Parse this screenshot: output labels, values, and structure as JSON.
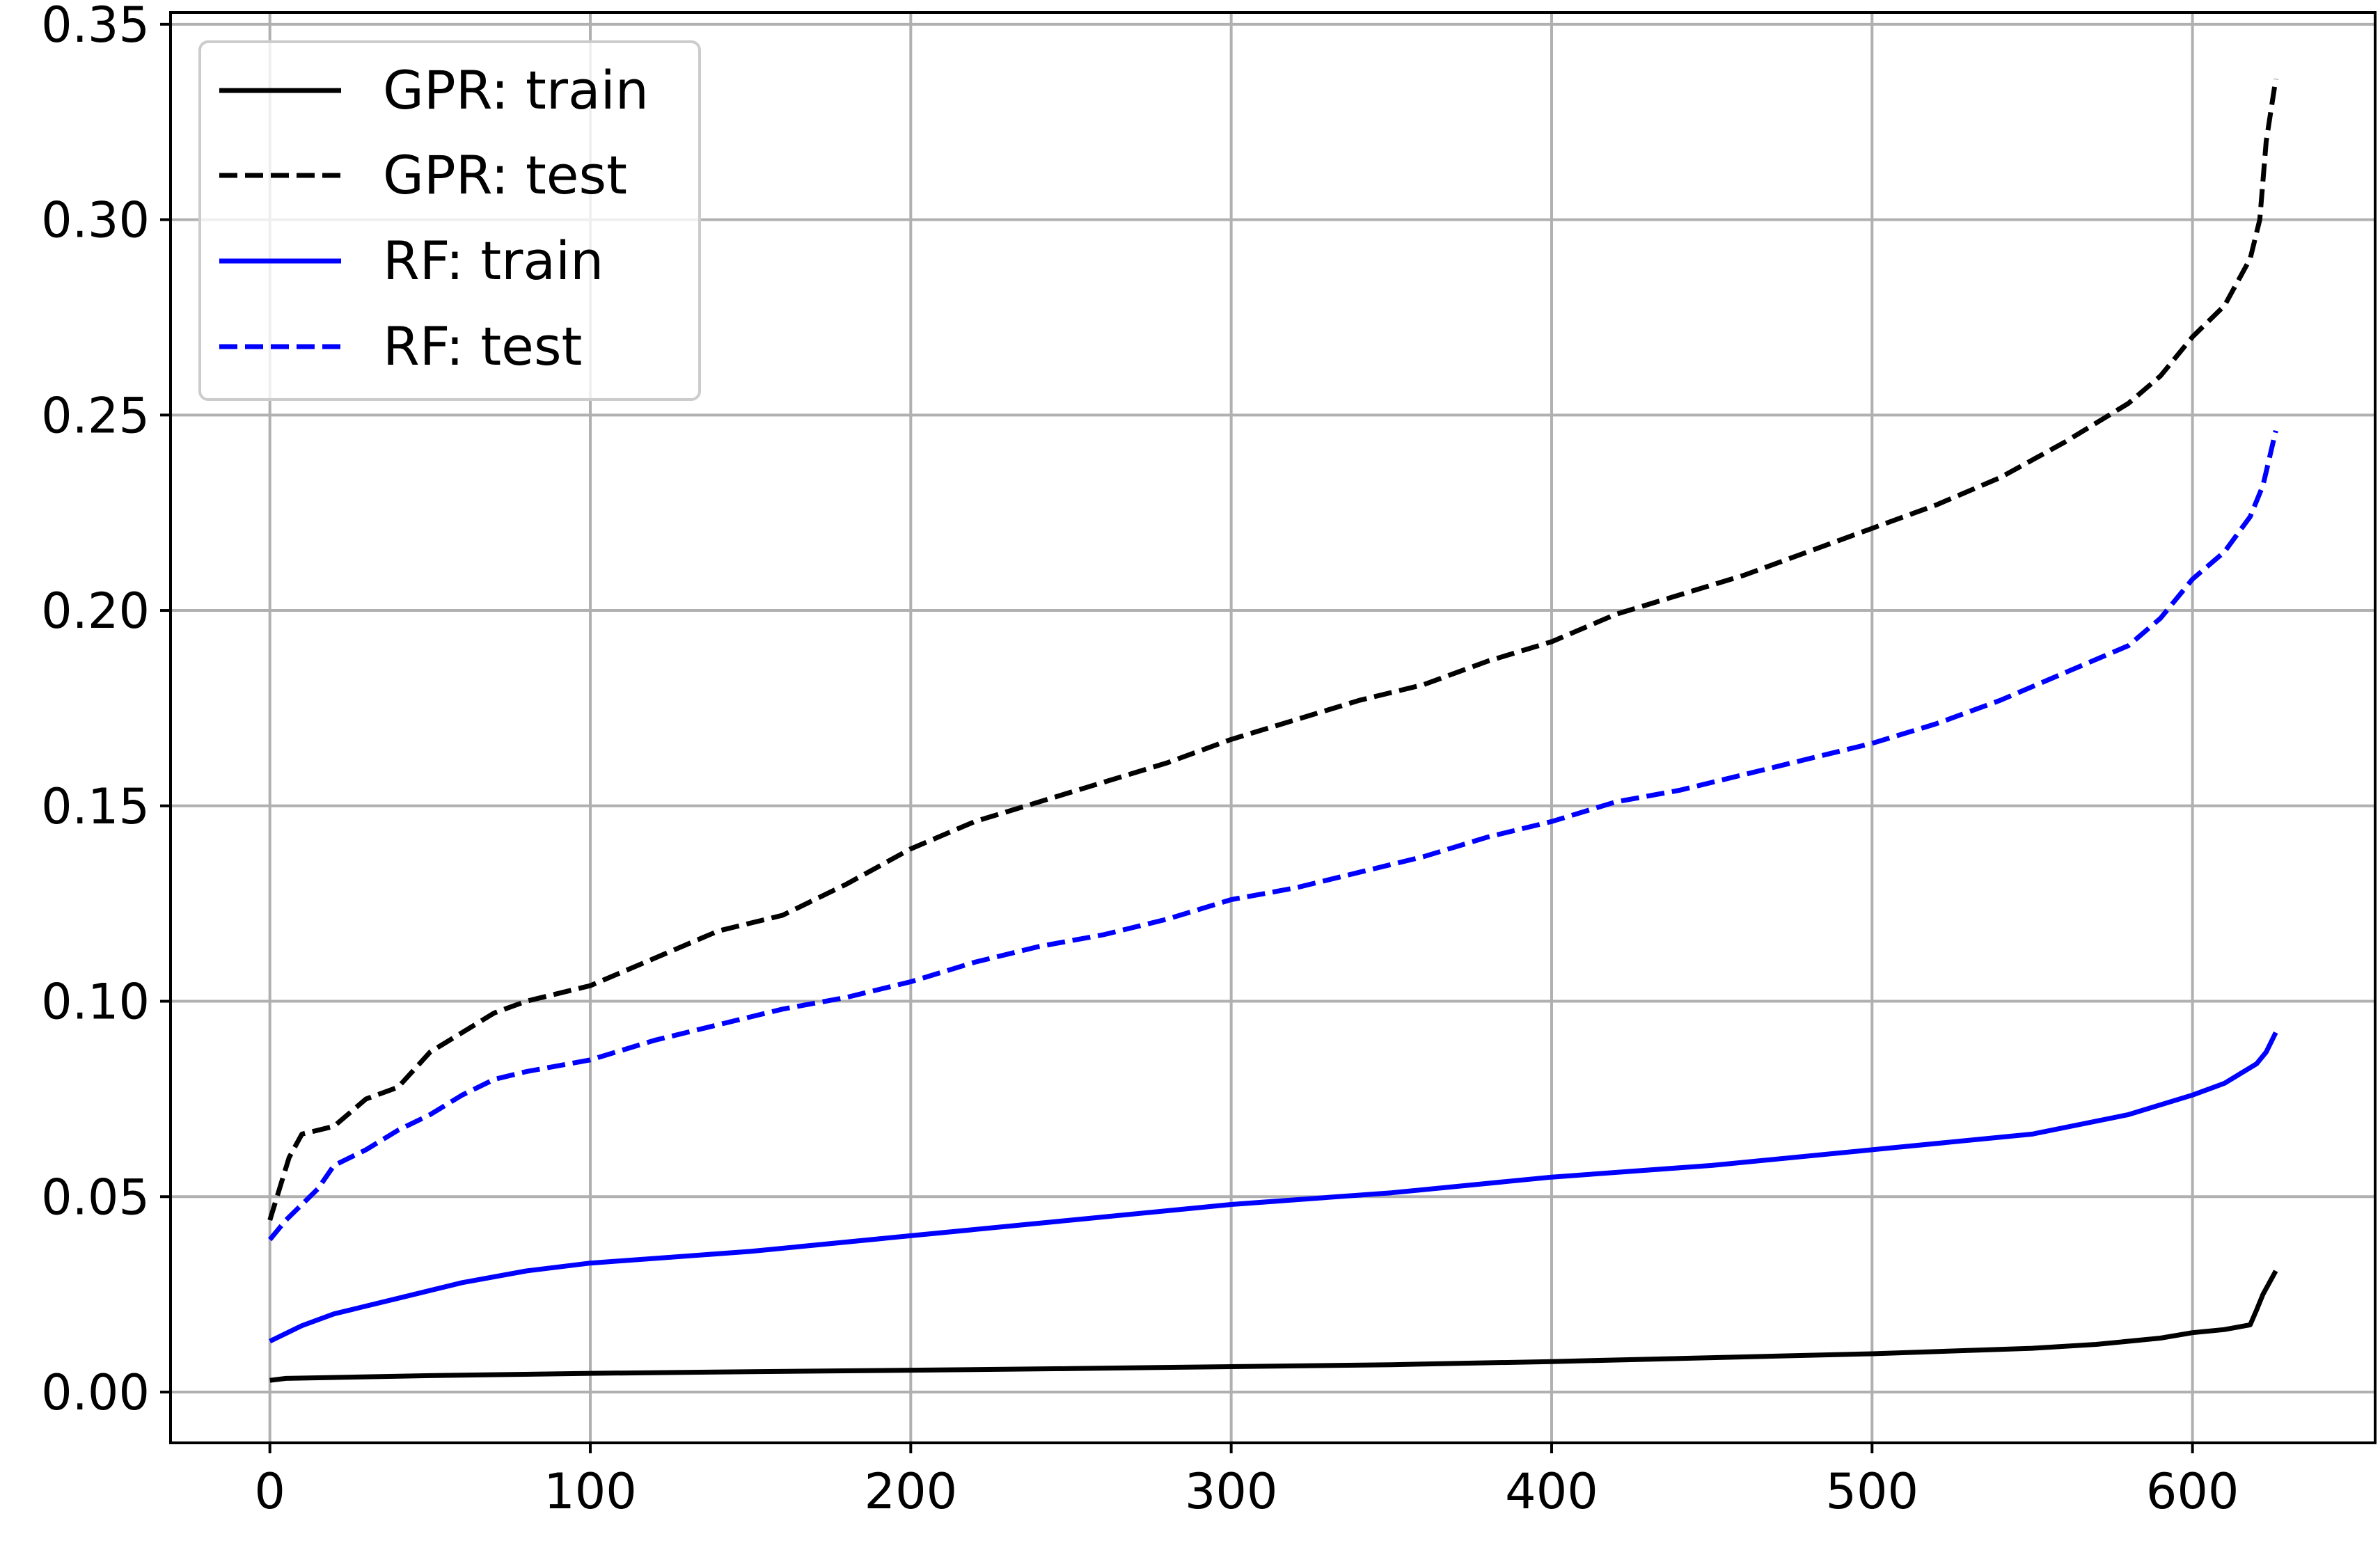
{
  "chart_data": {
    "type": "line",
    "title": "",
    "xlabel": "",
    "ylabel": "",
    "xlim": [
      -31,
      657
    ],
    "ylim": [
      -0.013,
      0.353
    ],
    "grid": true,
    "legend_position": "top-left",
    "x_ticks": [
      0,
      100,
      200,
      300,
      400,
      500,
      600
    ],
    "y_ticks": [
      0.0,
      0.05,
      0.1,
      0.15,
      0.2,
      0.25,
      0.3,
      0.35
    ],
    "x_tick_labels": [
      "0",
      "100",
      "200",
      "300",
      "400",
      "500",
      "600"
    ],
    "y_tick_labels": [
      "0.00",
      "0.05",
      "0.10",
      "0.15",
      "0.20",
      "0.25",
      "0.30",
      "0.35"
    ],
    "series": [
      {
        "name": "GPR: train",
        "color": "#000000",
        "dash": "solid",
        "points": [
          [
            0,
            0.003
          ],
          [
            5,
            0.0035
          ],
          [
            50,
            0.0042
          ],
          [
            100,
            0.0048
          ],
          [
            150,
            0.0052
          ],
          [
            200,
            0.0056
          ],
          [
            250,
            0.006
          ],
          [
            300,
            0.0065
          ],
          [
            350,
            0.007
          ],
          [
            400,
            0.0078
          ],
          [
            450,
            0.0088
          ],
          [
            500,
            0.0098
          ],
          [
            550,
            0.0112
          ],
          [
            570,
            0.0122
          ],
          [
            590,
            0.0138
          ],
          [
            600,
            0.0152
          ],
          [
            610,
            0.016
          ],
          [
            618,
            0.0172
          ],
          [
            620,
            0.021
          ],
          [
            622,
            0.025
          ],
          [
            626,
            0.031
          ]
        ]
      },
      {
        "name": "GPR: test",
        "color": "#000000",
        "dash": "dashed",
        "points": [
          [
            0,
            0.044
          ],
          [
            3,
            0.052
          ],
          [
            6,
            0.06
          ],
          [
            10,
            0.066
          ],
          [
            20,
            0.068
          ],
          [
            30,
            0.075
          ],
          [
            40,
            0.078
          ],
          [
            50,
            0.087
          ],
          [
            60,
            0.092
          ],
          [
            70,
            0.097
          ],
          [
            80,
            0.1
          ],
          [
            100,
            0.104
          ],
          [
            120,
            0.111
          ],
          [
            140,
            0.118
          ],
          [
            160,
            0.122
          ],
          [
            180,
            0.13
          ],
          [
            200,
            0.139
          ],
          [
            220,
            0.146
          ],
          [
            240,
            0.151
          ],
          [
            260,
            0.156
          ],
          [
            280,
            0.161
          ],
          [
            300,
            0.167
          ],
          [
            320,
            0.172
          ],
          [
            340,
            0.177
          ],
          [
            360,
            0.181
          ],
          [
            380,
            0.187
          ],
          [
            400,
            0.192
          ],
          [
            420,
            0.199
          ],
          [
            440,
            0.204
          ],
          [
            460,
            0.209
          ],
          [
            480,
            0.215
          ],
          [
            500,
            0.221
          ],
          [
            520,
            0.227
          ],
          [
            540,
            0.234
          ],
          [
            560,
            0.243
          ],
          [
            580,
            0.253
          ],
          [
            590,
            0.26
          ],
          [
            600,
            0.27
          ],
          [
            610,
            0.278
          ],
          [
            618,
            0.29
          ],
          [
            621,
            0.3
          ],
          [
            623,
            0.32
          ],
          [
            626,
            0.336
          ]
        ]
      },
      {
        "name": "RF: train",
        "color": "#0000ff",
        "dash": "solid",
        "points": [
          [
            0,
            0.013
          ],
          [
            10,
            0.017
          ],
          [
            20,
            0.02
          ],
          [
            40,
            0.024
          ],
          [
            60,
            0.028
          ],
          [
            80,
            0.031
          ],
          [
            100,
            0.033
          ],
          [
            150,
            0.036
          ],
          [
            200,
            0.04
          ],
          [
            250,
            0.044
          ],
          [
            300,
            0.048
          ],
          [
            350,
            0.051
          ],
          [
            400,
            0.055
          ],
          [
            450,
            0.058
          ],
          [
            500,
            0.062
          ],
          [
            550,
            0.066
          ],
          [
            580,
            0.071
          ],
          [
            600,
            0.076
          ],
          [
            610,
            0.079
          ],
          [
            620,
            0.084
          ],
          [
            623,
            0.087
          ],
          [
            626,
            0.092
          ]
        ]
      },
      {
        "name": "RF: test",
        "color": "#0000ff",
        "dash": "dashed",
        "points": [
          [
            0,
            0.039
          ],
          [
            5,
            0.044
          ],
          [
            10,
            0.048
          ],
          [
            15,
            0.052
          ],
          [
            20,
            0.058
          ],
          [
            30,
            0.062
          ],
          [
            40,
            0.067
          ],
          [
            50,
            0.071
          ],
          [
            60,
            0.076
          ],
          [
            70,
            0.08
          ],
          [
            80,
            0.082
          ],
          [
            100,
            0.085
          ],
          [
            120,
            0.09
          ],
          [
            140,
            0.094
          ],
          [
            160,
            0.098
          ],
          [
            180,
            0.101
          ],
          [
            200,
            0.105
          ],
          [
            220,
            0.11
          ],
          [
            240,
            0.114
          ],
          [
            260,
            0.117
          ],
          [
            280,
            0.121
          ],
          [
            300,
            0.126
          ],
          [
            320,
            0.129
          ],
          [
            340,
            0.133
          ],
          [
            360,
            0.137
          ],
          [
            380,
            0.142
          ],
          [
            400,
            0.146
          ],
          [
            420,
            0.151
          ],
          [
            440,
            0.154
          ],
          [
            460,
            0.158
          ],
          [
            480,
            0.162
          ],
          [
            500,
            0.166
          ],
          [
            520,
            0.171
          ],
          [
            540,
            0.177
          ],
          [
            560,
            0.184
          ],
          [
            580,
            0.191
          ],
          [
            590,
            0.198
          ],
          [
            600,
            0.208
          ],
          [
            610,
            0.215
          ],
          [
            618,
            0.224
          ],
          [
            622,
            0.232
          ],
          [
            626,
            0.246
          ]
        ]
      }
    ]
  }
}
